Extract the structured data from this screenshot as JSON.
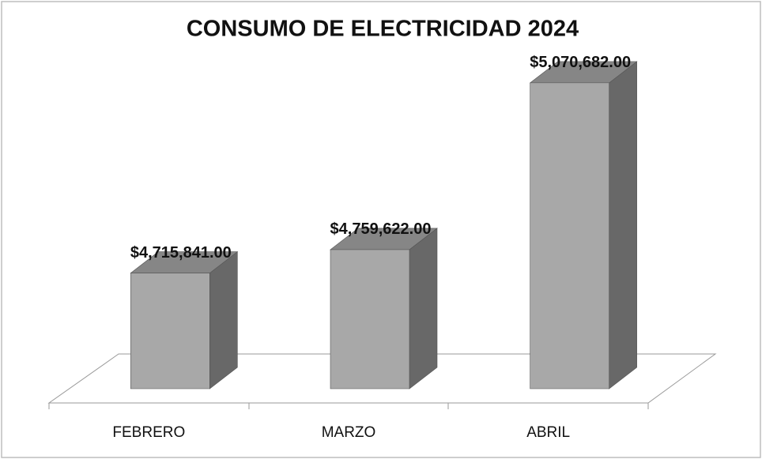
{
  "chart_data": {
    "type": "bar3d",
    "title": "CONSUMO DE ELECTRICIDAD 2024",
    "categories": [
      "FEBRERO",
      "MARZO",
      "ABRIL"
    ],
    "values": [
      4715841,
      4759622,
      5070682
    ],
    "value_labels": [
      "$4,715,841.00",
      "$4,759,622.00",
      "$5,070,682.00"
    ],
    "color": "#a8a8a8",
    "ylim": [
      4500000,
      5100000
    ]
  }
}
